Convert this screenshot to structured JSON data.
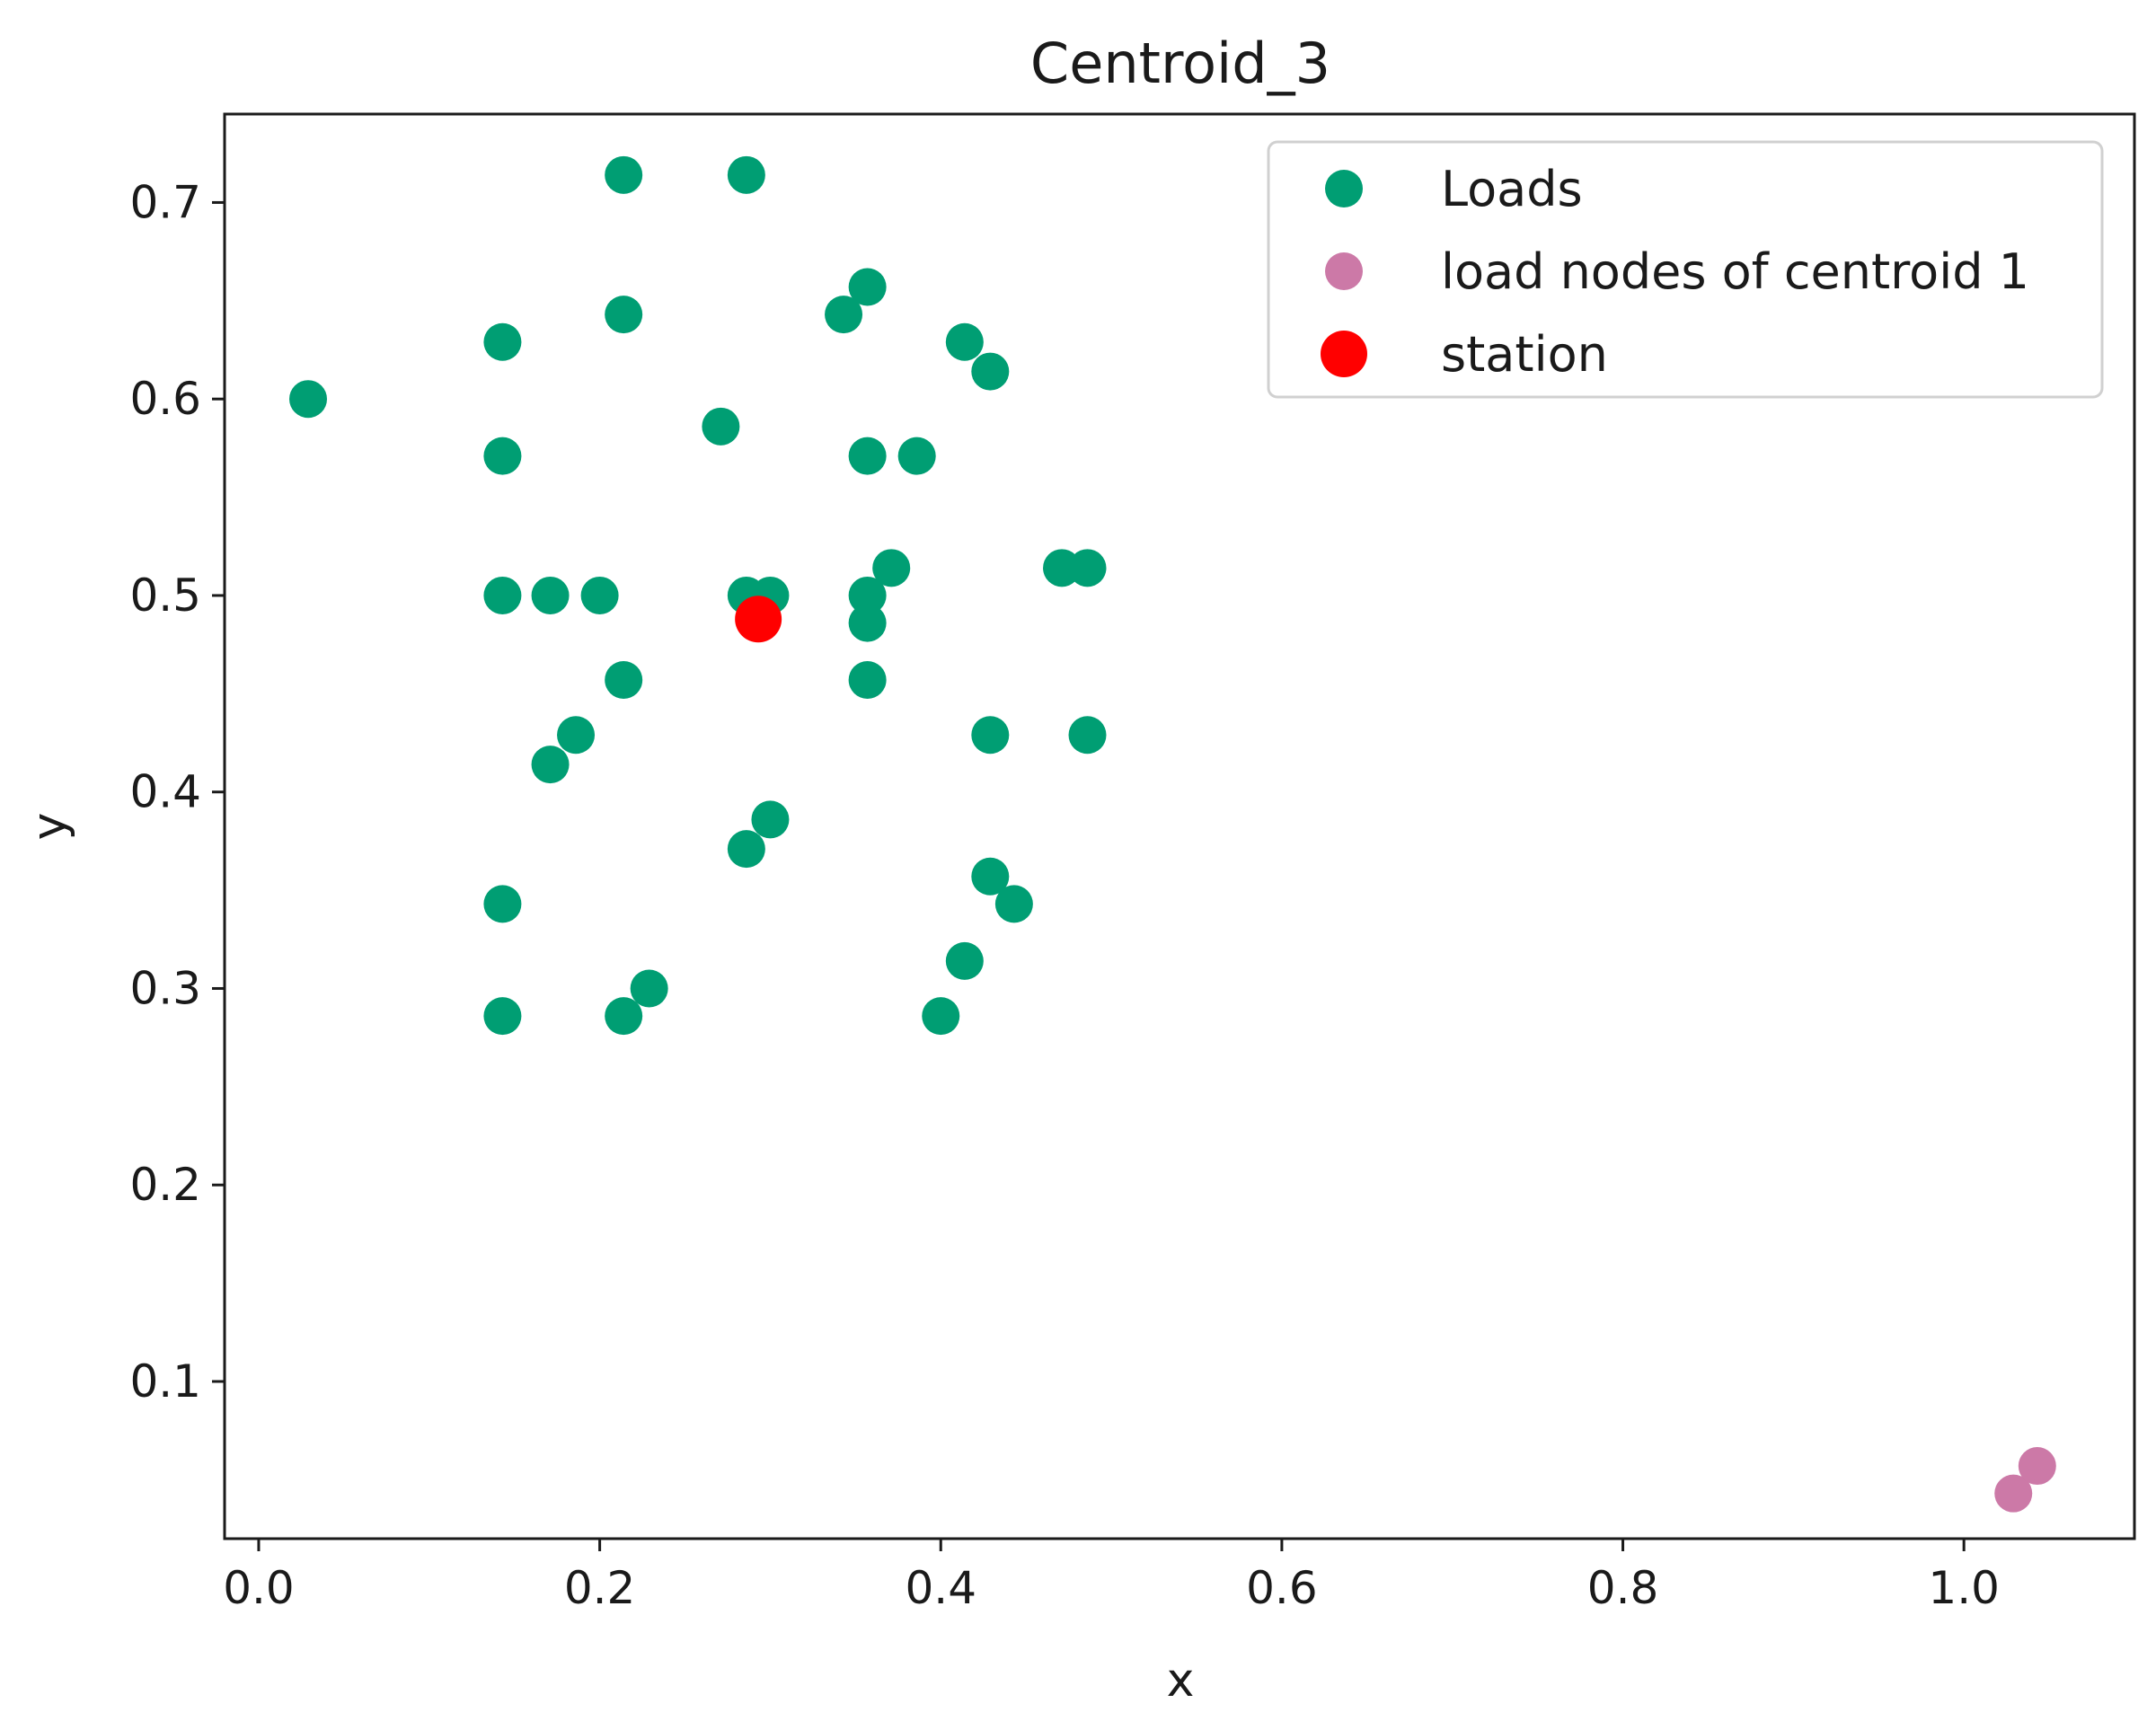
{
  "chart_data": {
    "type": "scatter",
    "title": "Centroid_3",
    "xlabel": "x",
    "ylabel": "y",
    "xlim": [
      -0.02,
      1.1
    ],
    "ylim": [
      0.02,
      0.745
    ],
    "xticks": [
      "0.0",
      "0.2",
      "0.4",
      "0.6",
      "0.8",
      "1.0"
    ],
    "xtick_values": [
      0.0,
      0.2,
      0.4,
      0.6,
      0.8,
      1.0
    ],
    "yticks": [
      "0.1",
      "0.2",
      "0.3",
      "0.4",
      "0.5",
      "0.6",
      "0.7"
    ],
    "ytick_values": [
      0.1,
      0.2,
      0.3,
      0.4,
      0.5,
      0.6,
      0.7
    ],
    "grid": false,
    "legend_position": "top-right",
    "series": [
      {
        "name": "Loads",
        "color": "#009E73",
        "x": [
          0.029,
          0.143,
          0.143,
          0.143,
          0.143,
          0.143,
          0.171,
          0.171,
          0.186,
          0.2,
          0.214,
          0.214,
          0.214,
          0.214,
          0.229,
          0.271,
          0.286,
          0.286,
          0.286,
          0.3,
          0.3,
          0.343,
          0.357,
          0.357,
          0.357,
          0.357,
          0.357,
          0.371,
          0.386,
          0.4,
          0.414,
          0.414,
          0.429,
          0.429,
          0.429,
          0.443,
          0.471,
          0.486,
          0.486
        ],
        "y": [
          0.6,
          0.629,
          0.571,
          0.5,
          0.343,
          0.286,
          0.5,
          0.414,
          0.429,
          0.5,
          0.714,
          0.643,
          0.457,
          0.286,
          0.3,
          0.586,
          0.714,
          0.5,
          0.371,
          0.5,
          0.386,
          0.643,
          0.657,
          0.571,
          0.5,
          0.486,
          0.457,
          0.514,
          0.571,
          0.286,
          0.629,
          0.314,
          0.614,
          0.429,
          0.357,
          0.343,
          0.514,
          0.514,
          0.429
        ]
      },
      {
        "name": "load nodes of centroid 1",
        "color": "#CC79A7",
        "x": [
          1.029,
          1.043
        ],
        "y": [
          0.043,
          0.057
        ]
      },
      {
        "name": "station",
        "color": "#FF0000",
        "x": [
          0.293
        ],
        "y": [
          0.488
        ]
      }
    ]
  }
}
